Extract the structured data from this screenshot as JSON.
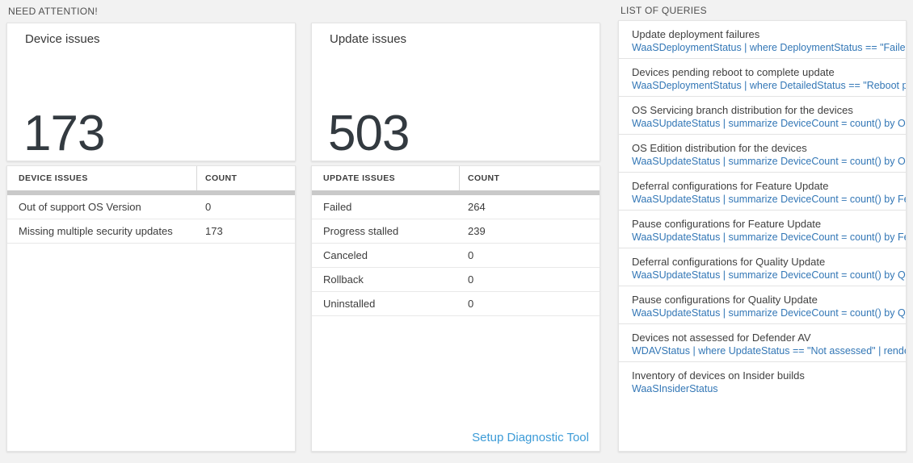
{
  "colors": {
    "page_background": "#f2f2f2",
    "big_number": "#333a40",
    "query_text_blue": "#3377b6",
    "link_blue": "#3c9bd7",
    "splitter_gray": "#c9c9c9"
  },
  "need_attention": {
    "header": "NEED ATTENTION!",
    "device": {
      "title": "Device issues",
      "big_number": "173",
      "table": {
        "columns": [
          "DEVICE ISSUES",
          "COUNT"
        ],
        "rows": [
          {
            "label": "Out of support OS Version",
            "count": "0"
          },
          {
            "label": "Missing multiple security updates",
            "count": "173"
          }
        ]
      }
    },
    "update": {
      "title": "Update issues",
      "big_number": "503",
      "table": {
        "columns": [
          "UPDATE ISSUES",
          "COUNT"
        ],
        "rows": [
          {
            "label": "Failed",
            "count": "264"
          },
          {
            "label": "Progress stalled",
            "count": "239"
          },
          {
            "label": "Canceled",
            "count": "0"
          },
          {
            "label": "Rollback",
            "count": "0"
          },
          {
            "label": "Uninstalled",
            "count": "0"
          }
        ]
      },
      "footer_link": "Setup Diagnostic Tool"
    }
  },
  "queries": {
    "header": "LIST OF QUERIES",
    "items": [
      {
        "title": "Update deployment failures",
        "query": "WaaSDeploymentStatus | where DeploymentStatus == \"Failed\" |..."
      },
      {
        "title": "Devices pending reboot to complete update",
        "query": "WaaSDeploymentStatus | where DetailedStatus == \"Reboot pend..."
      },
      {
        "title": "OS Servicing branch distribution for the devices",
        "query": "WaaSUpdateStatus | summarize DeviceCount = count() by OSSer..."
      },
      {
        "title": "OS Edition distribution for the devices",
        "query": "WaaSUpdateStatus | summarize DeviceCount = count() by OSEdit..."
      },
      {
        "title": "Deferral configurations for Feature Update",
        "query": "WaaSUpdateStatus | summarize DeviceCount = count() by Featur..."
      },
      {
        "title": "Pause configurations for Feature Update",
        "query": "WaaSUpdateStatus | summarize DeviceCount = count() by Featur..."
      },
      {
        "title": "Deferral configurations for Quality Update",
        "query": "WaaSUpdateStatus | summarize DeviceCount = count() by Qualit..."
      },
      {
        "title": "Pause configurations for Quality Update",
        "query": "WaaSUpdateStatus | summarize DeviceCount = count() by Qualit..."
      },
      {
        "title": "Devices not assessed for Defender AV",
        "query": "WDAVStatus | where UpdateStatus == \"Not assessed\" | render ta..."
      },
      {
        "title": "Inventory of devices on Insider builds",
        "query": "WaaSInsiderStatus"
      }
    ]
  }
}
